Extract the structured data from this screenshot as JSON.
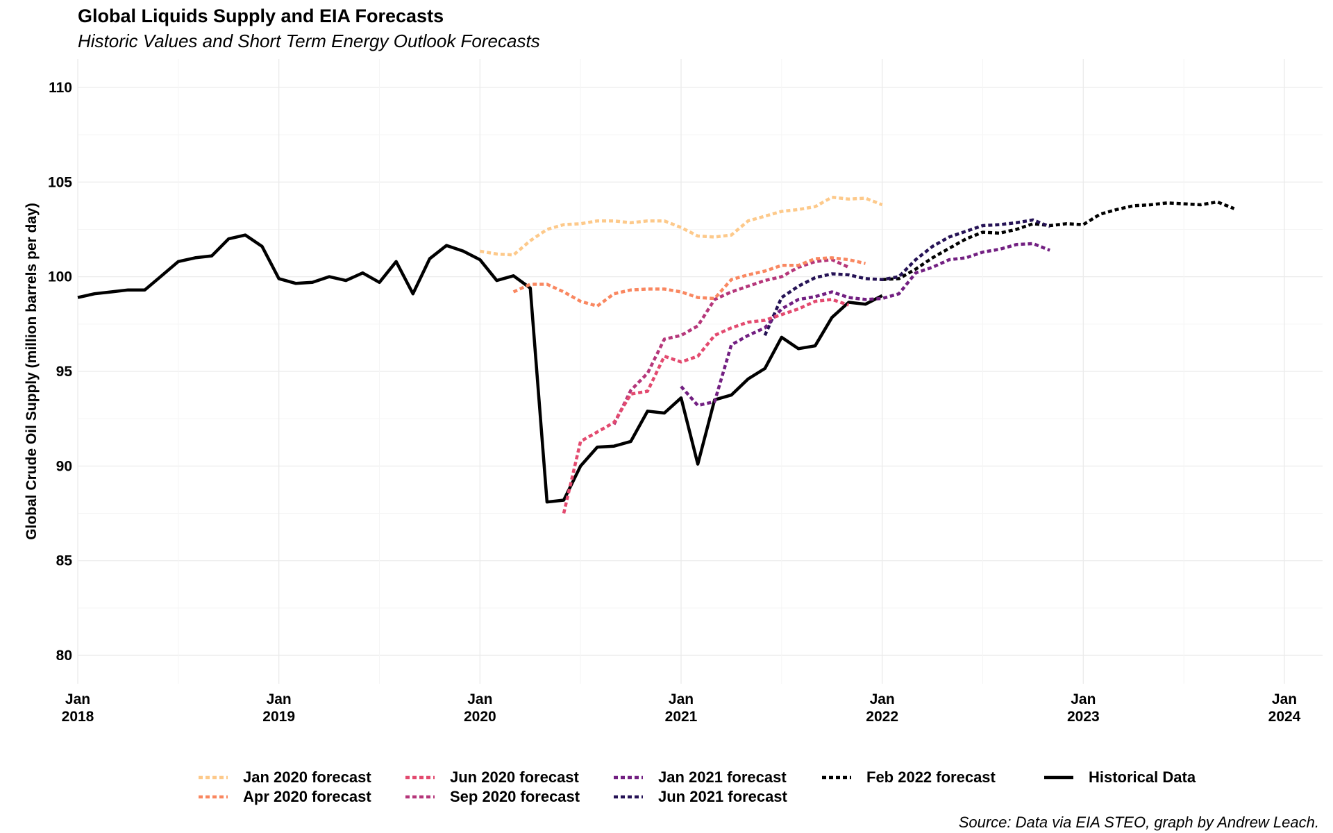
{
  "title": "Global Liquids Supply and EIA Forecasts",
  "subtitle": "Historic Values and Short Term Energy Outlook Forecasts",
  "caption": "Source: Data via EIA STEO, graph by Andrew Leach.",
  "chart_data": {
    "type": "line",
    "ylabel": "Global Crude Oil Supply (million barrels per day)",
    "xlabel": "",
    "ylim": [
      78.5,
      111.5
    ],
    "xlim": [
      "2018-01",
      "2024-02"
    ],
    "y_ticks": [
      80,
      85,
      90,
      95,
      100,
      105,
      110
    ],
    "x_ticks": [
      {
        "date": "2018-01",
        "label": [
          "Jan",
          "2018"
        ]
      },
      {
        "date": "2019-01",
        "label": [
          "Jan",
          "2019"
        ]
      },
      {
        "date": "2020-01",
        "label": [
          "Jan",
          "2020"
        ]
      },
      {
        "date": "2021-01",
        "label": [
          "Jan",
          "2021"
        ]
      },
      {
        "date": "2022-01",
        "label": [
          "Jan",
          "2022"
        ]
      },
      {
        "date": "2023-01",
        "label": [
          "Jan",
          "2023"
        ]
      },
      {
        "date": "2024-01",
        "label": [
          "Jan",
          "2024"
        ]
      }
    ],
    "grid": true,
    "legend_position": "bottom",
    "series": [
      {
        "name": "Jan 2020 forecast",
        "color": "#FDC98A",
        "dashed": true,
        "start": "2020-01",
        "values": [
          101.35,
          101.2,
          101.15,
          101.9,
          102.5,
          102.75,
          102.8,
          102.95,
          102.95,
          102.85,
          102.95,
          102.95,
          102.6,
          102.15,
          102.1,
          102.2,
          102.95,
          103.2,
          103.45,
          103.55,
          103.7,
          104.2,
          104.1,
          104.15,
          103.8
        ]
      },
      {
        "name": "Apr 2020 forecast",
        "color": "#F98760",
        "dashed": true,
        "start": "2020-03",
        "values": [
          99.2,
          99.6,
          99.6,
          99.2,
          98.7,
          98.45,
          99.1,
          99.3,
          99.35,
          99.35,
          99.2,
          98.9,
          98.85,
          99.85,
          100.1,
          100.3,
          100.6,
          100.6,
          100.95,
          101.0,
          100.9,
          100.7
        ]
      },
      {
        "name": "Jun 2020 forecast",
        "color": "#E34A6F",
        "dashed": true,
        "start": "2020-06",
        "values": [
          87.5,
          91.3,
          91.8,
          92.3,
          93.8,
          93.95,
          95.8,
          95.5,
          95.8,
          96.9,
          97.3,
          97.6,
          97.7,
          98.0,
          98.3,
          98.7,
          98.8,
          98.5
        ]
      },
      {
        "name": "Sep 2020 forecast",
        "color": "#B5367A",
        "dashed": true,
        "start": "2020-09",
        "values": [
          92.2,
          94.0,
          94.9,
          96.7,
          96.9,
          97.4,
          98.8,
          99.2,
          99.5,
          99.8,
          100.0,
          100.5,
          100.8,
          100.9,
          100.5
        ]
      },
      {
        "name": "Jan 2021 forecast",
        "color": "#721F81",
        "dashed": true,
        "start": "2021-01",
        "values": [
          94.2,
          93.2,
          93.4,
          96.4,
          96.9,
          97.3,
          98.3,
          98.8,
          98.95,
          99.2,
          98.9,
          98.8,
          98.85,
          99.1,
          100.2,
          100.5,
          100.9,
          101.0,
          101.3,
          101.45,
          101.7,
          101.75,
          101.4
        ]
      },
      {
        "name": "Jun 2021 forecast",
        "color": "#251255",
        "dashed": true,
        "start": "2021-06",
        "values": [
          96.9,
          98.9,
          99.5,
          99.95,
          100.15,
          100.1,
          99.9,
          99.85,
          100.0,
          100.9,
          101.6,
          102.1,
          102.4,
          102.7,
          102.75,
          102.85,
          103.0,
          102.65
        ]
      },
      {
        "name": "Feb 2022 forecast",
        "color": "#000000",
        "dashed": true,
        "start": "2022-01",
        "values": [
          99.85,
          99.9,
          100.4,
          101.0,
          101.5,
          102.0,
          102.35,
          102.3,
          102.5,
          102.8,
          102.7,
          102.8,
          102.75,
          103.3,
          103.55,
          103.75,
          103.8,
          103.9,
          103.85,
          103.8,
          103.95,
          103.6
        ]
      },
      {
        "name": "Historical Data",
        "color": "#000000",
        "dashed": false,
        "start": "2018-01",
        "values": [
          98.9,
          99.1,
          99.2,
          99.3,
          99.3,
          100.05,
          100.8,
          101.0,
          101.1,
          102.0,
          102.2,
          101.6,
          99.9,
          99.65,
          99.7,
          100.0,
          99.8,
          100.2,
          99.7,
          100.8,
          99.1,
          100.95,
          101.65,
          101.35,
          100.9,
          99.8,
          100.05,
          99.4,
          88.1,
          88.2,
          90.0,
          91.0,
          91.05,
          91.3,
          92.9,
          92.8,
          93.6,
          90.1,
          93.5,
          93.75,
          94.6,
          95.15,
          96.8,
          96.2,
          96.35,
          97.85,
          98.65,
          98.55,
          99.0
        ]
      }
    ]
  }
}
